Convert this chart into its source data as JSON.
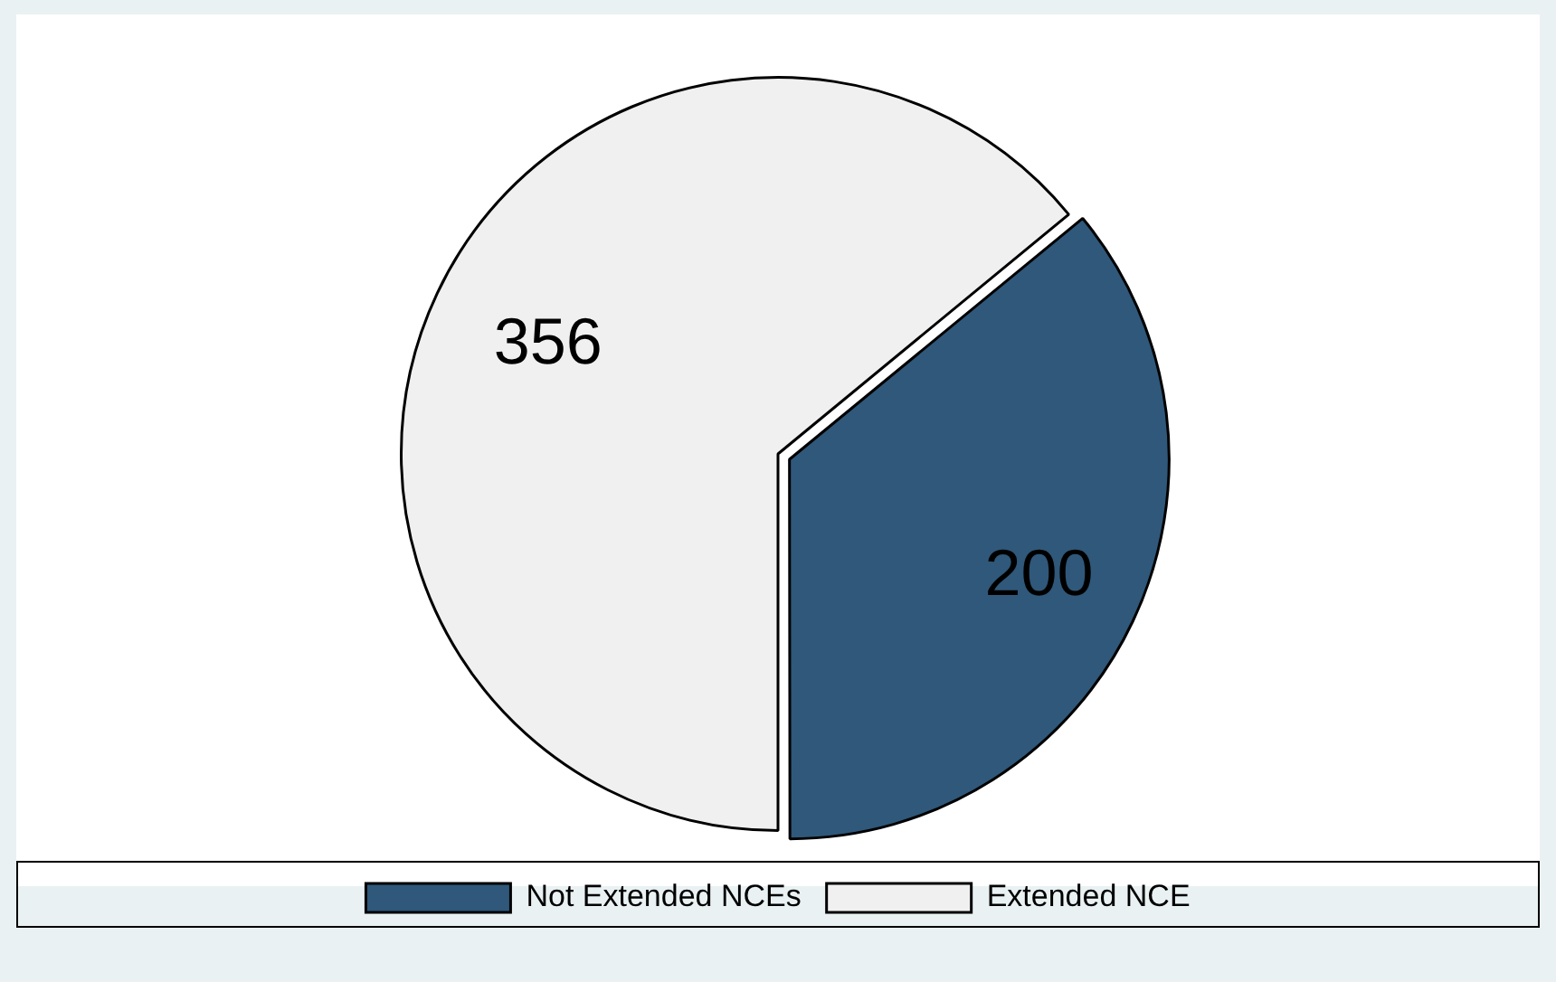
{
  "chart_data": {
    "type": "pie",
    "categories": [
      "Not Extended NCEs",
      "Extended NCE"
    ],
    "values": [
      200,
      356
    ],
    "colors": [
      "#2f587a",
      "#f0f0f0"
    ],
    "data_labels": true,
    "legend": "bottom"
  }
}
